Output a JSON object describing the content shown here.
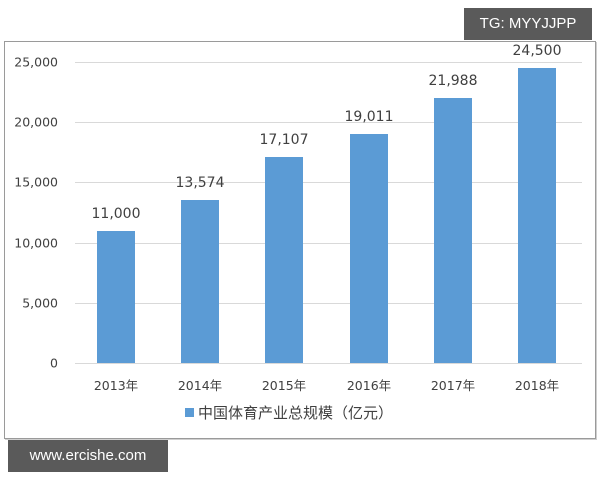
{
  "watermarks": {
    "top_right": "TG: MYYJJPP",
    "bottom_left": "www.ercishe.com"
  },
  "colors": {
    "bar": "#5B9BD5",
    "grid": "#d9d9d9",
    "text": "#404040",
    "watermark_bg": "#5a5a5a"
  },
  "axis": {
    "y_ticks": [
      "25,000",
      "20,000",
      "15,000",
      "10,000",
      "5,000",
      "0"
    ]
  },
  "bars": [
    {
      "year": "2013年",
      "label": "11,000"
    },
    {
      "year": "2014年",
      "label": "13,574"
    },
    {
      "year": "2015年",
      "label": "17,107"
    },
    {
      "year": "2016年",
      "label": "19,011"
    },
    {
      "year": "2017年",
      "label": "21,988"
    },
    {
      "year": "2018年",
      "label": "24,500"
    }
  ],
  "legend": {
    "label": "中国体育产业总规模（亿元）"
  },
  "chart_data": {
    "type": "bar",
    "title": "",
    "categories": [
      "2013年",
      "2014年",
      "2015年",
      "2016年",
      "2017年",
      "2018年"
    ],
    "series": [
      {
        "name": "中国体育产业总规模（亿元）",
        "values": [
          11000,
          13574,
          17107,
          19011,
          21988,
          24500
        ]
      }
    ],
    "xlabel": "",
    "ylabel": "",
    "ylim": [
      0,
      25000
    ],
    "yticks": [
      0,
      5000,
      10000,
      15000,
      20000,
      25000
    ],
    "grid": true,
    "legend_position": "bottom",
    "data_labels": true
  }
}
